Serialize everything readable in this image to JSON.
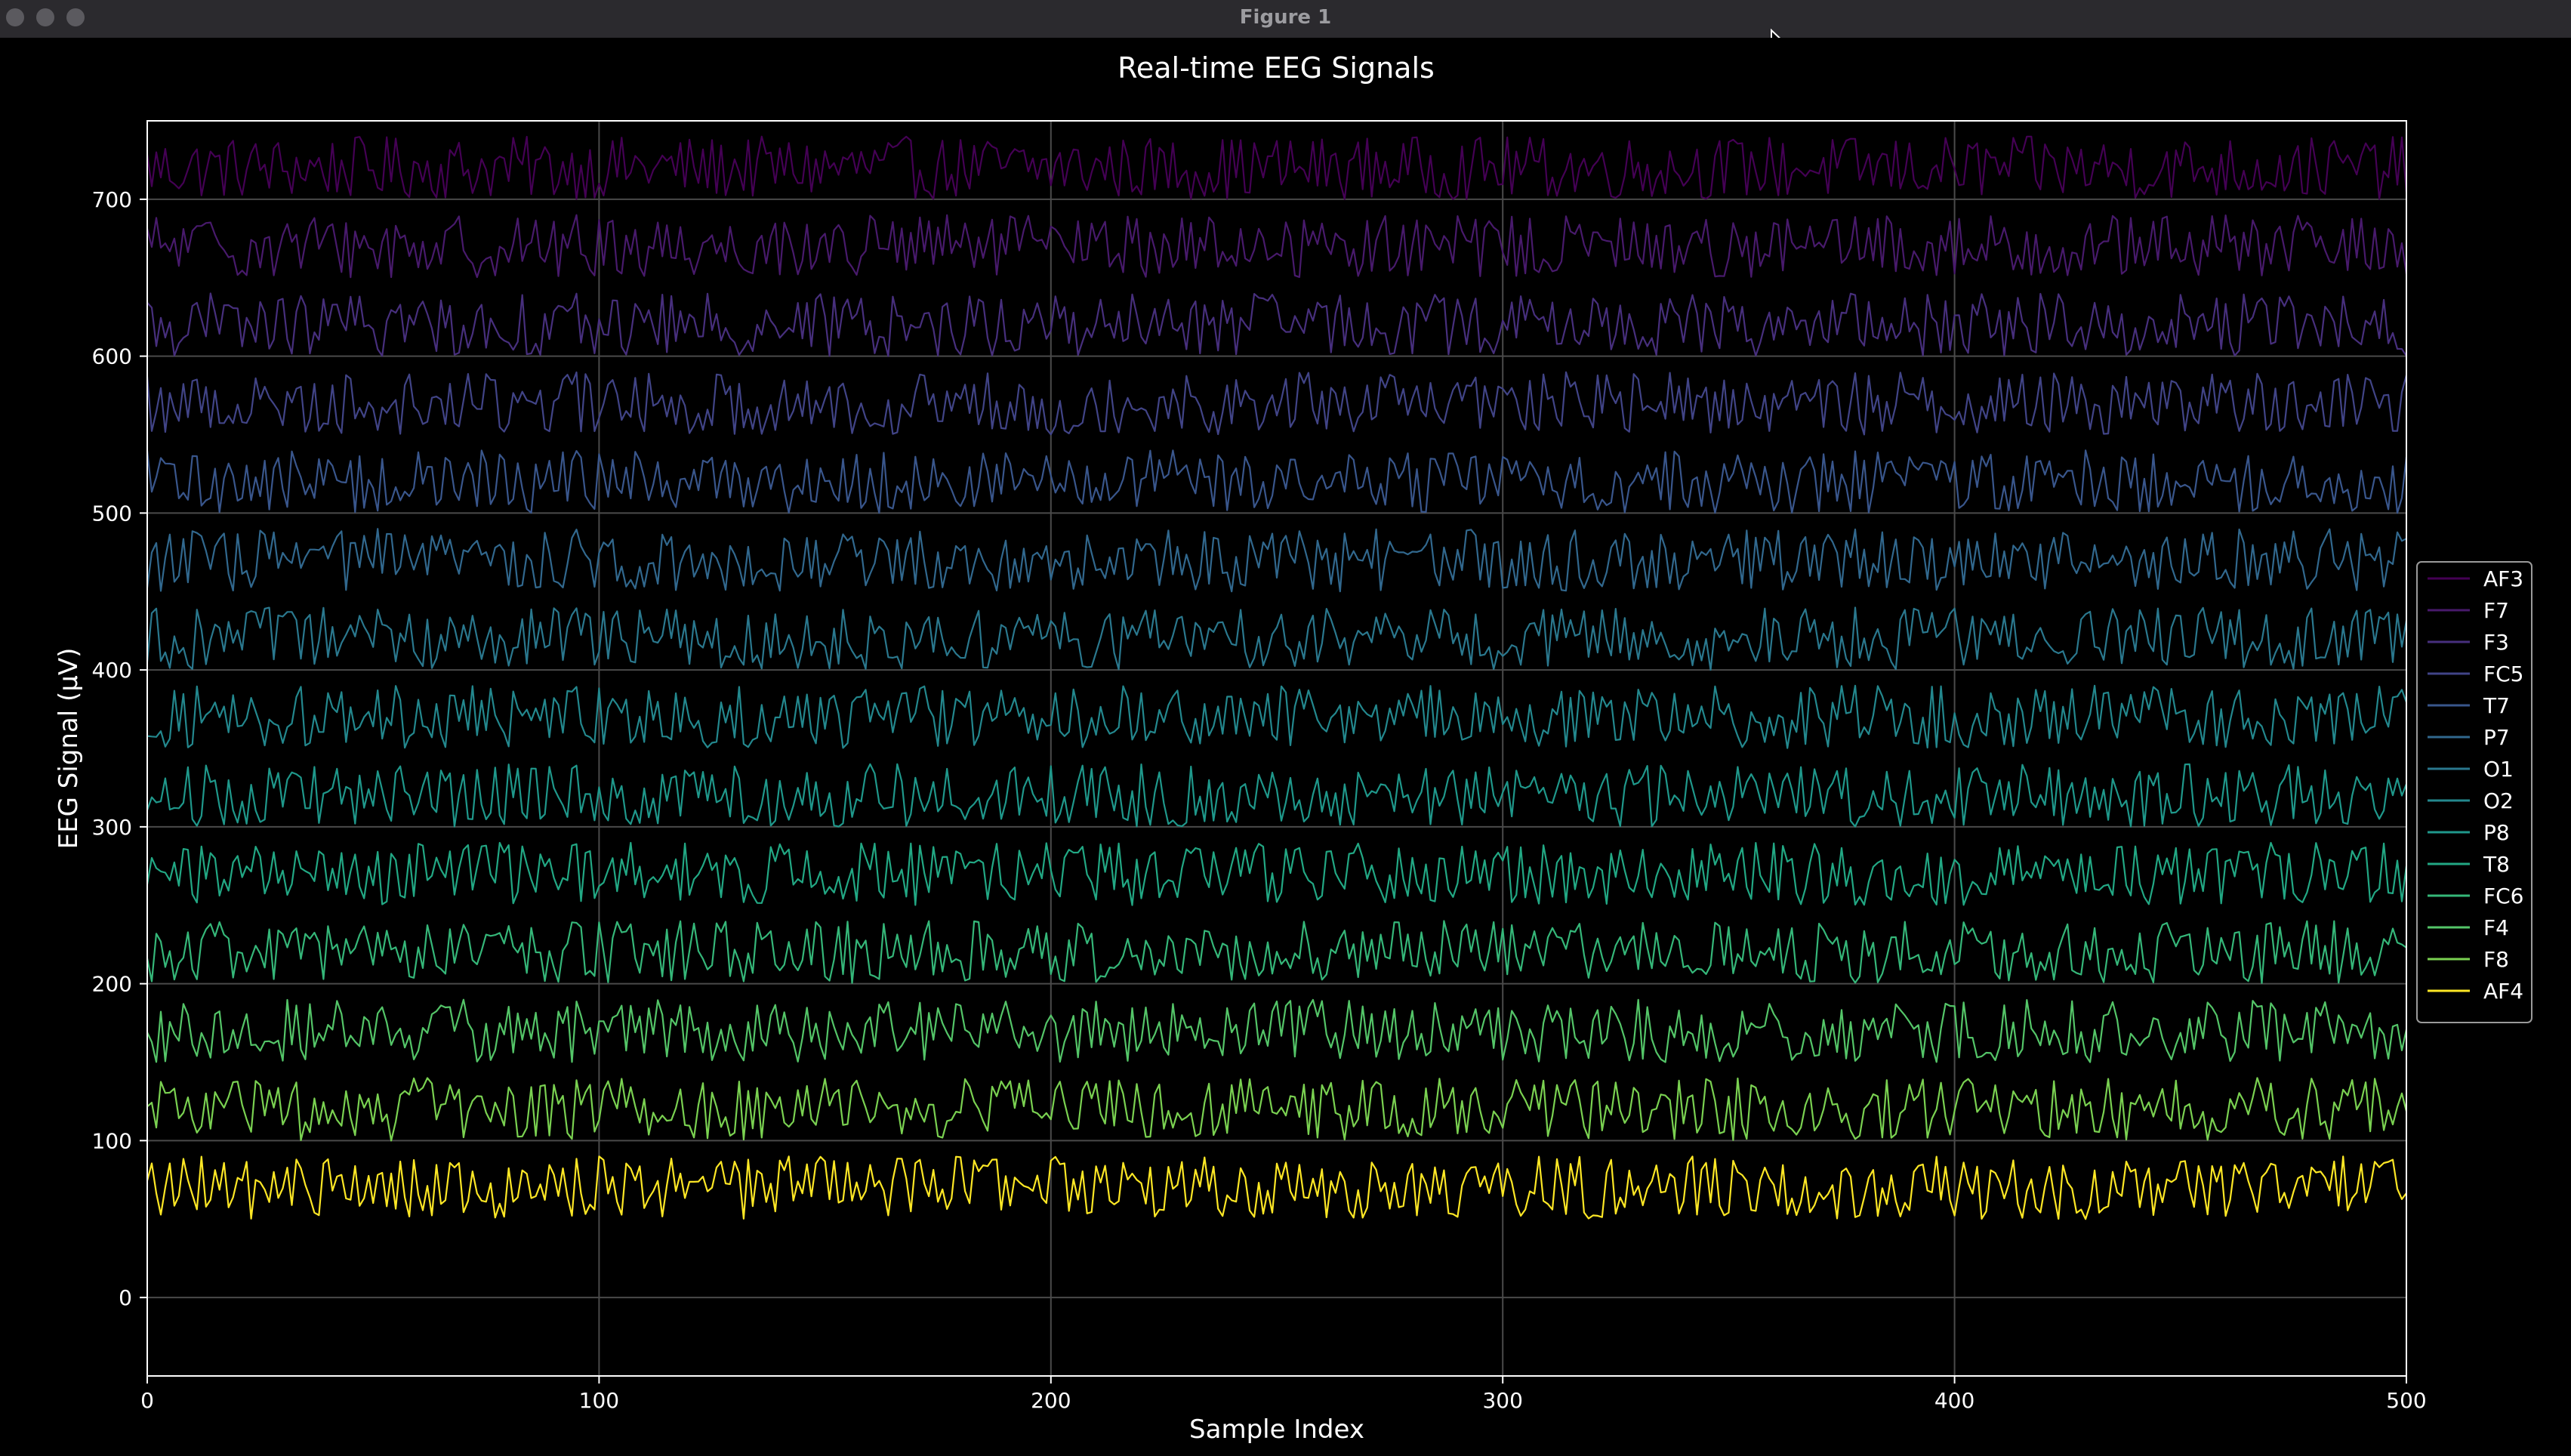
{
  "window": {
    "title": "Figure 1"
  },
  "chart_data": {
    "type": "line",
    "title": "Real-time EEG Signals",
    "xlabel": "Sample Index",
    "ylabel": "EEG Signal (µV)",
    "xlim": [
      0,
      500
    ],
    "ylim": [
      -50,
      750
    ],
    "xticks": [
      0,
      100,
      200,
      300,
      400,
      500
    ],
    "yticks": [
      0,
      100,
      200,
      300,
      400,
      500,
      600,
      700
    ],
    "grid": true,
    "legend_position": "right",
    "n_samples": 500,
    "series": [
      {
        "name": "AF3",
        "offset": 720,
        "amplitude": 20,
        "color": "#440154"
      },
      {
        "name": "F7",
        "offset": 670,
        "amplitude": 20,
        "color": "#481a6c"
      },
      {
        "name": "F3",
        "offset": 620,
        "amplitude": 20,
        "color": "#472f7d"
      },
      {
        "name": "FC5",
        "offset": 570,
        "amplitude": 20,
        "color": "#414487"
      },
      {
        "name": "T7",
        "offset": 520,
        "amplitude": 20,
        "color": "#39568c"
      },
      {
        "name": "P7",
        "offset": 470,
        "amplitude": 20,
        "color": "#31688e"
      },
      {
        "name": "O1",
        "offset": 420,
        "amplitude": 20,
        "color": "#2a788e"
      },
      {
        "name": "O2",
        "offset": 370,
        "amplitude": 20,
        "color": "#23888e"
      },
      {
        "name": "P8",
        "offset": 320,
        "amplitude": 20,
        "color": "#1f988b"
      },
      {
        "name": "T8",
        "offset": 270,
        "amplitude": 20,
        "color": "#22a884"
      },
      {
        "name": "FC6",
        "offset": 220,
        "amplitude": 20,
        "color": "#35b779"
      },
      {
        "name": "F4",
        "offset": 170,
        "amplitude": 20,
        "color": "#54c568"
      },
      {
        "name": "F8",
        "offset": 120,
        "amplitude": 20,
        "color": "#7ad151"
      },
      {
        "name": "AF4",
        "offset": 70,
        "amplitude": 20,
        "color": "#fde725"
      }
    ]
  }
}
